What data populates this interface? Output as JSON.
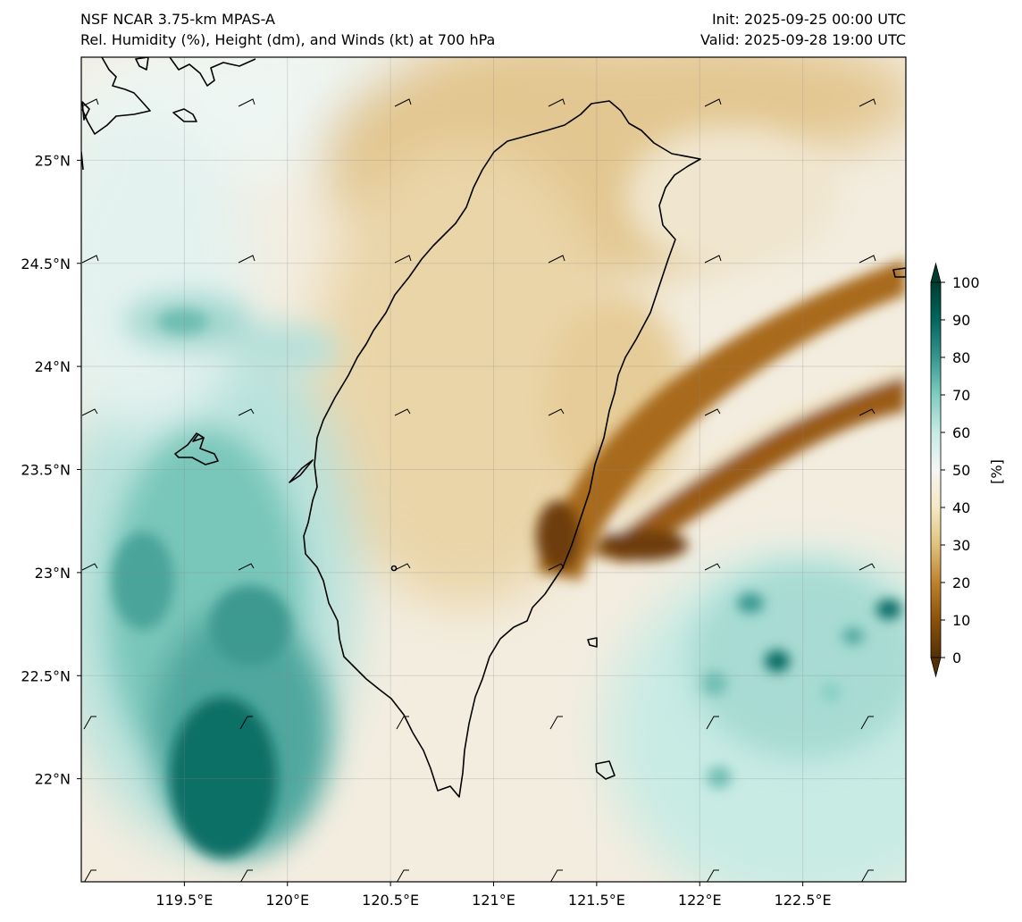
{
  "header": {
    "model": "NSF NCAR 3.75-km MPAS-A",
    "fields": "Rel. Humidity (%), Height (dm), and Winds (kt) at 700 hPa",
    "init": "Init: 2025-09-25 00:00 UTC",
    "valid": "Valid: 2025-09-28 19:00 UTC"
  },
  "map": {
    "lon_range": [
      119.0,
      123.0
    ],
    "lat_range": [
      21.5,
      25.5
    ],
    "lon_ticks": [
      {
        "value": 119.5,
        "label": "119.5°E"
      },
      {
        "value": 120.0,
        "label": "120°E"
      },
      {
        "value": 120.5,
        "label": "120.5°E"
      },
      {
        "value": 121.0,
        "label": "121°E"
      },
      {
        "value": 121.5,
        "label": "121.5°E"
      },
      {
        "value": 122.0,
        "label": "122°E"
      },
      {
        "value": 122.5,
        "label": "122.5°E"
      }
    ],
    "lat_ticks": [
      {
        "value": 25.0,
        "label": "25°N"
      },
      {
        "value": 24.5,
        "label": "24.5°N"
      },
      {
        "value": 24.0,
        "label": "24°N"
      },
      {
        "value": 23.5,
        "label": "23.5°N"
      },
      {
        "value": 23.0,
        "label": "23°N"
      },
      {
        "value": 22.5,
        "label": "22.5°N"
      },
      {
        "value": 22.0,
        "label": "22°N"
      }
    ],
    "colors": {
      "dry": "#8c510a",
      "mid": "#f5f5f5",
      "moist": "#01665e",
      "coast": "#000000",
      "grid": "#d9d9d9"
    }
  },
  "colorbar": {
    "ticks": [
      "100",
      "90",
      "80",
      "70",
      "60",
      "50",
      "40",
      "30",
      "20",
      "10",
      "0"
    ],
    "unit": "[%]",
    "colors": [
      "#543005",
      "#8c510a",
      "#bf812d",
      "#dfc27d",
      "#f6e8c3",
      "#f5f5f5",
      "#c7eae5",
      "#80cdc1",
      "#35978f",
      "#01665e",
      "#003c30"
    ]
  }
}
